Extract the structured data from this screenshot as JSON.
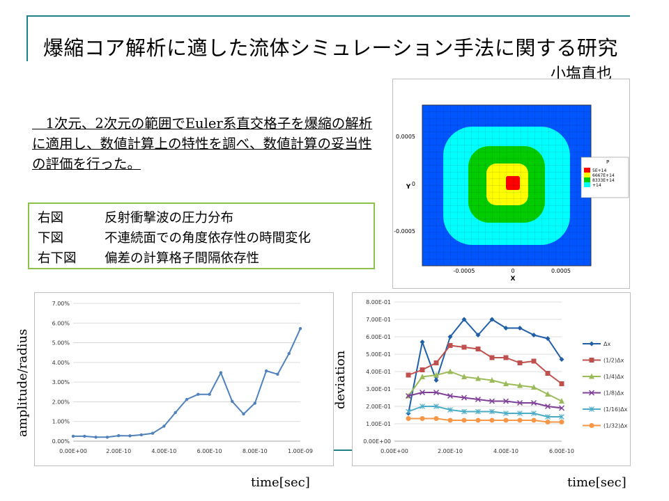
{
  "slide": {
    "title": "爆縮コア解析に適した流体シミュレーション手法に関する研究",
    "author": "小塩直也",
    "summary": "　1次元、2次元の範囲でEuler系直交格子を爆縮の解析に適用し、数値計算上の特性を調べ、数値計算の妥当性の評価を行った。"
  },
  "legend": [
    {
      "key": "右図",
      "desc": "反射衝撃波の圧力分布"
    },
    {
      "key": "下図",
      "desc": "不連続面での角度依存性の時間変化"
    },
    {
      "key": "右下図",
      "desc": "偏差の計算格子間隔依存性"
    }
  ],
  "colors": {
    "rule": "#1f7f86",
    "legend_border": "#8bc34a"
  },
  "chart_data": [
    {
      "type": "heatmap",
      "xlabel": "X",
      "ylabel": "Y",
      "xticks": [
        "-0.0005",
        "0",
        "0.0005"
      ],
      "yticks": [
        "0.0005",
        "0",
        "-0.0005"
      ],
      "legend_title": "P",
      "legend_labels": [
        "5E+14",
        "6667E+14",
        "8333E+14",
        "+14"
      ],
      "colors": [
        "#ff0000",
        "#ffff00",
        "#00cc00",
        "#00ffff",
        "#0055ff"
      ]
    },
    {
      "type": "line",
      "xlabel": "time[sec]",
      "ylabel": "amplitude/radius",
      "xticks": [
        "0.00E+00",
        "2.00E-10",
        "4.00E-10",
        "6.00E-10",
        "8.00E-10",
        "1.00E-09"
      ],
      "yticks": [
        "0.00%",
        "1.00%",
        "2.00%",
        "3.00%",
        "4.00%",
        "5.00%",
        "6.00%",
        "7.00%"
      ],
      "xlim": [
        0,
        1e-09
      ],
      "ylim": [
        0,
        0.07
      ],
      "color": "#4f81bd",
      "x": [
        0,
        5e-11,
        1e-10,
        1.5e-10,
        2e-10,
        2.5e-10,
        3e-10,
        3.5e-10,
        4e-10,
        4.5e-10,
        5e-10,
        5.5e-10,
        6e-10,
        6.5e-10,
        7e-10,
        7.5e-10,
        8e-10,
        8.5e-10,
        9e-10,
        9.5e-10,
        1e-09
      ],
      "y": [
        0.0025,
        0.0025,
        0.002,
        0.002,
        0.0028,
        0.0027,
        0.0032,
        0.004,
        0.0076,
        0.0145,
        0.0212,
        0.0238,
        0.0238,
        0.0348,
        0.0202,
        0.0138,
        0.0193,
        0.0357,
        0.034,
        0.0445,
        0.0572
      ]
    },
    {
      "type": "line",
      "xlabel": "time[sec]",
      "ylabel": "deviation",
      "xticks": [
        "0.00E+00",
        "2.00E-10",
        "4.00E-10",
        "6.00E-10"
      ],
      "yticks": [
        "0.00E+00",
        "1.00E-01",
        "2.00E-01",
        "3.00E-01",
        "4.00E-01",
        "5.00E-01",
        "6.00E-01",
        "7.00E-01",
        "8.00E-01"
      ],
      "xlim": [
        0,
        6e-10
      ],
      "ylim": [
        0,
        0.8
      ],
      "x": [
        5e-11,
        1e-10,
        1.5e-10,
        2e-10,
        2.5e-10,
        3e-10,
        3.5e-10,
        4e-10,
        4.5e-10,
        5e-10,
        5.5e-10,
        6e-10
      ],
      "series": [
        {
          "name": "Δx",
          "color": "#1f5fa8",
          "marker": "diamond",
          "values": [
            0.16,
            0.57,
            0.35,
            0.6,
            0.7,
            0.61,
            0.7,
            0.65,
            0.65,
            0.61,
            0.59,
            0.47
          ]
        },
        {
          "name": "(1/2)Δx",
          "color": "#c0504d",
          "marker": "square",
          "values": [
            0.38,
            0.41,
            0.45,
            0.55,
            0.54,
            0.53,
            0.48,
            0.48,
            0.45,
            0.46,
            0.39,
            0.33
          ]
        },
        {
          "name": "(1/4)Δx",
          "color": "#9bbb59",
          "marker": "triangle",
          "values": [
            0.26,
            0.37,
            0.38,
            0.4,
            0.37,
            0.36,
            0.35,
            0.33,
            0.32,
            0.31,
            0.27,
            0.23
          ]
        },
        {
          "name": "(1/8)Δx",
          "color": "#7f3f98",
          "marker": "x",
          "values": [
            0.26,
            0.28,
            0.28,
            0.26,
            0.25,
            0.24,
            0.23,
            0.23,
            0.22,
            0.22,
            0.2,
            0.19
          ]
        },
        {
          "name": "(1/16)Δx",
          "color": "#4bacc6",
          "marker": "star",
          "values": [
            0.17,
            0.2,
            0.2,
            0.18,
            0.17,
            0.17,
            0.17,
            0.16,
            0.16,
            0.16,
            0.14,
            0.14
          ]
        },
        {
          "name": "(1/32)Δx",
          "color": "#f79646",
          "marker": "circle",
          "values": [
            0.13,
            0.13,
            0.13,
            0.12,
            0.12,
            0.12,
            0.12,
            0.12,
            0.12,
            0.12,
            0.11,
            0.11
          ]
        }
      ]
    }
  ]
}
